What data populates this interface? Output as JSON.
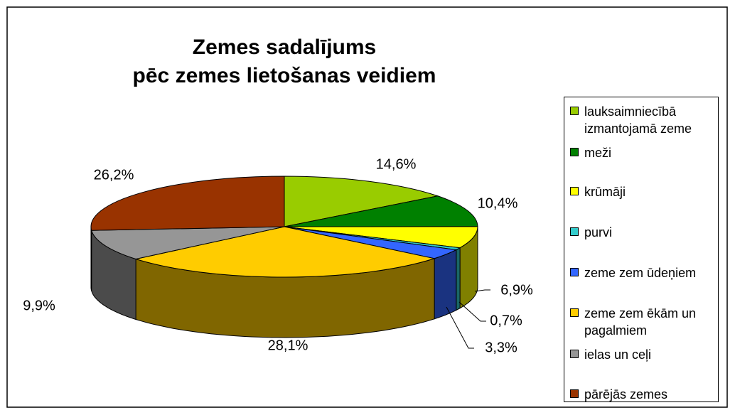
{
  "chart_data": {
    "type": "pie",
    "title": [
      "Zemes sadalījums",
      "pēc zemes lietošanas veidiem"
    ],
    "categories": [
      "lauksaimniecībā izmantojamā zeme",
      "meži",
      "krūmāji",
      "purvi",
      "zeme zem ūdeņiem",
      "zeme zem ēkām un pagalmiem",
      "ielas un ceļi",
      "pārējās zemes"
    ],
    "values": [
      14.6,
      10.4,
      6.9,
      0.7,
      3.3,
      28.1,
      9.9,
      26.2
    ],
    "value_labels": [
      "14,6%",
      "10,4%",
      "6,9%",
      "0,7%",
      "3,3%",
      "28,1%",
      "9,9%",
      "26,2%"
    ],
    "colors": [
      "#99cc00",
      "#008000",
      "#ffff00",
      "#33cccc",
      "#3366ff",
      "#ffcc00",
      "#969696",
      "#993300"
    ],
    "legend": "right"
  }
}
